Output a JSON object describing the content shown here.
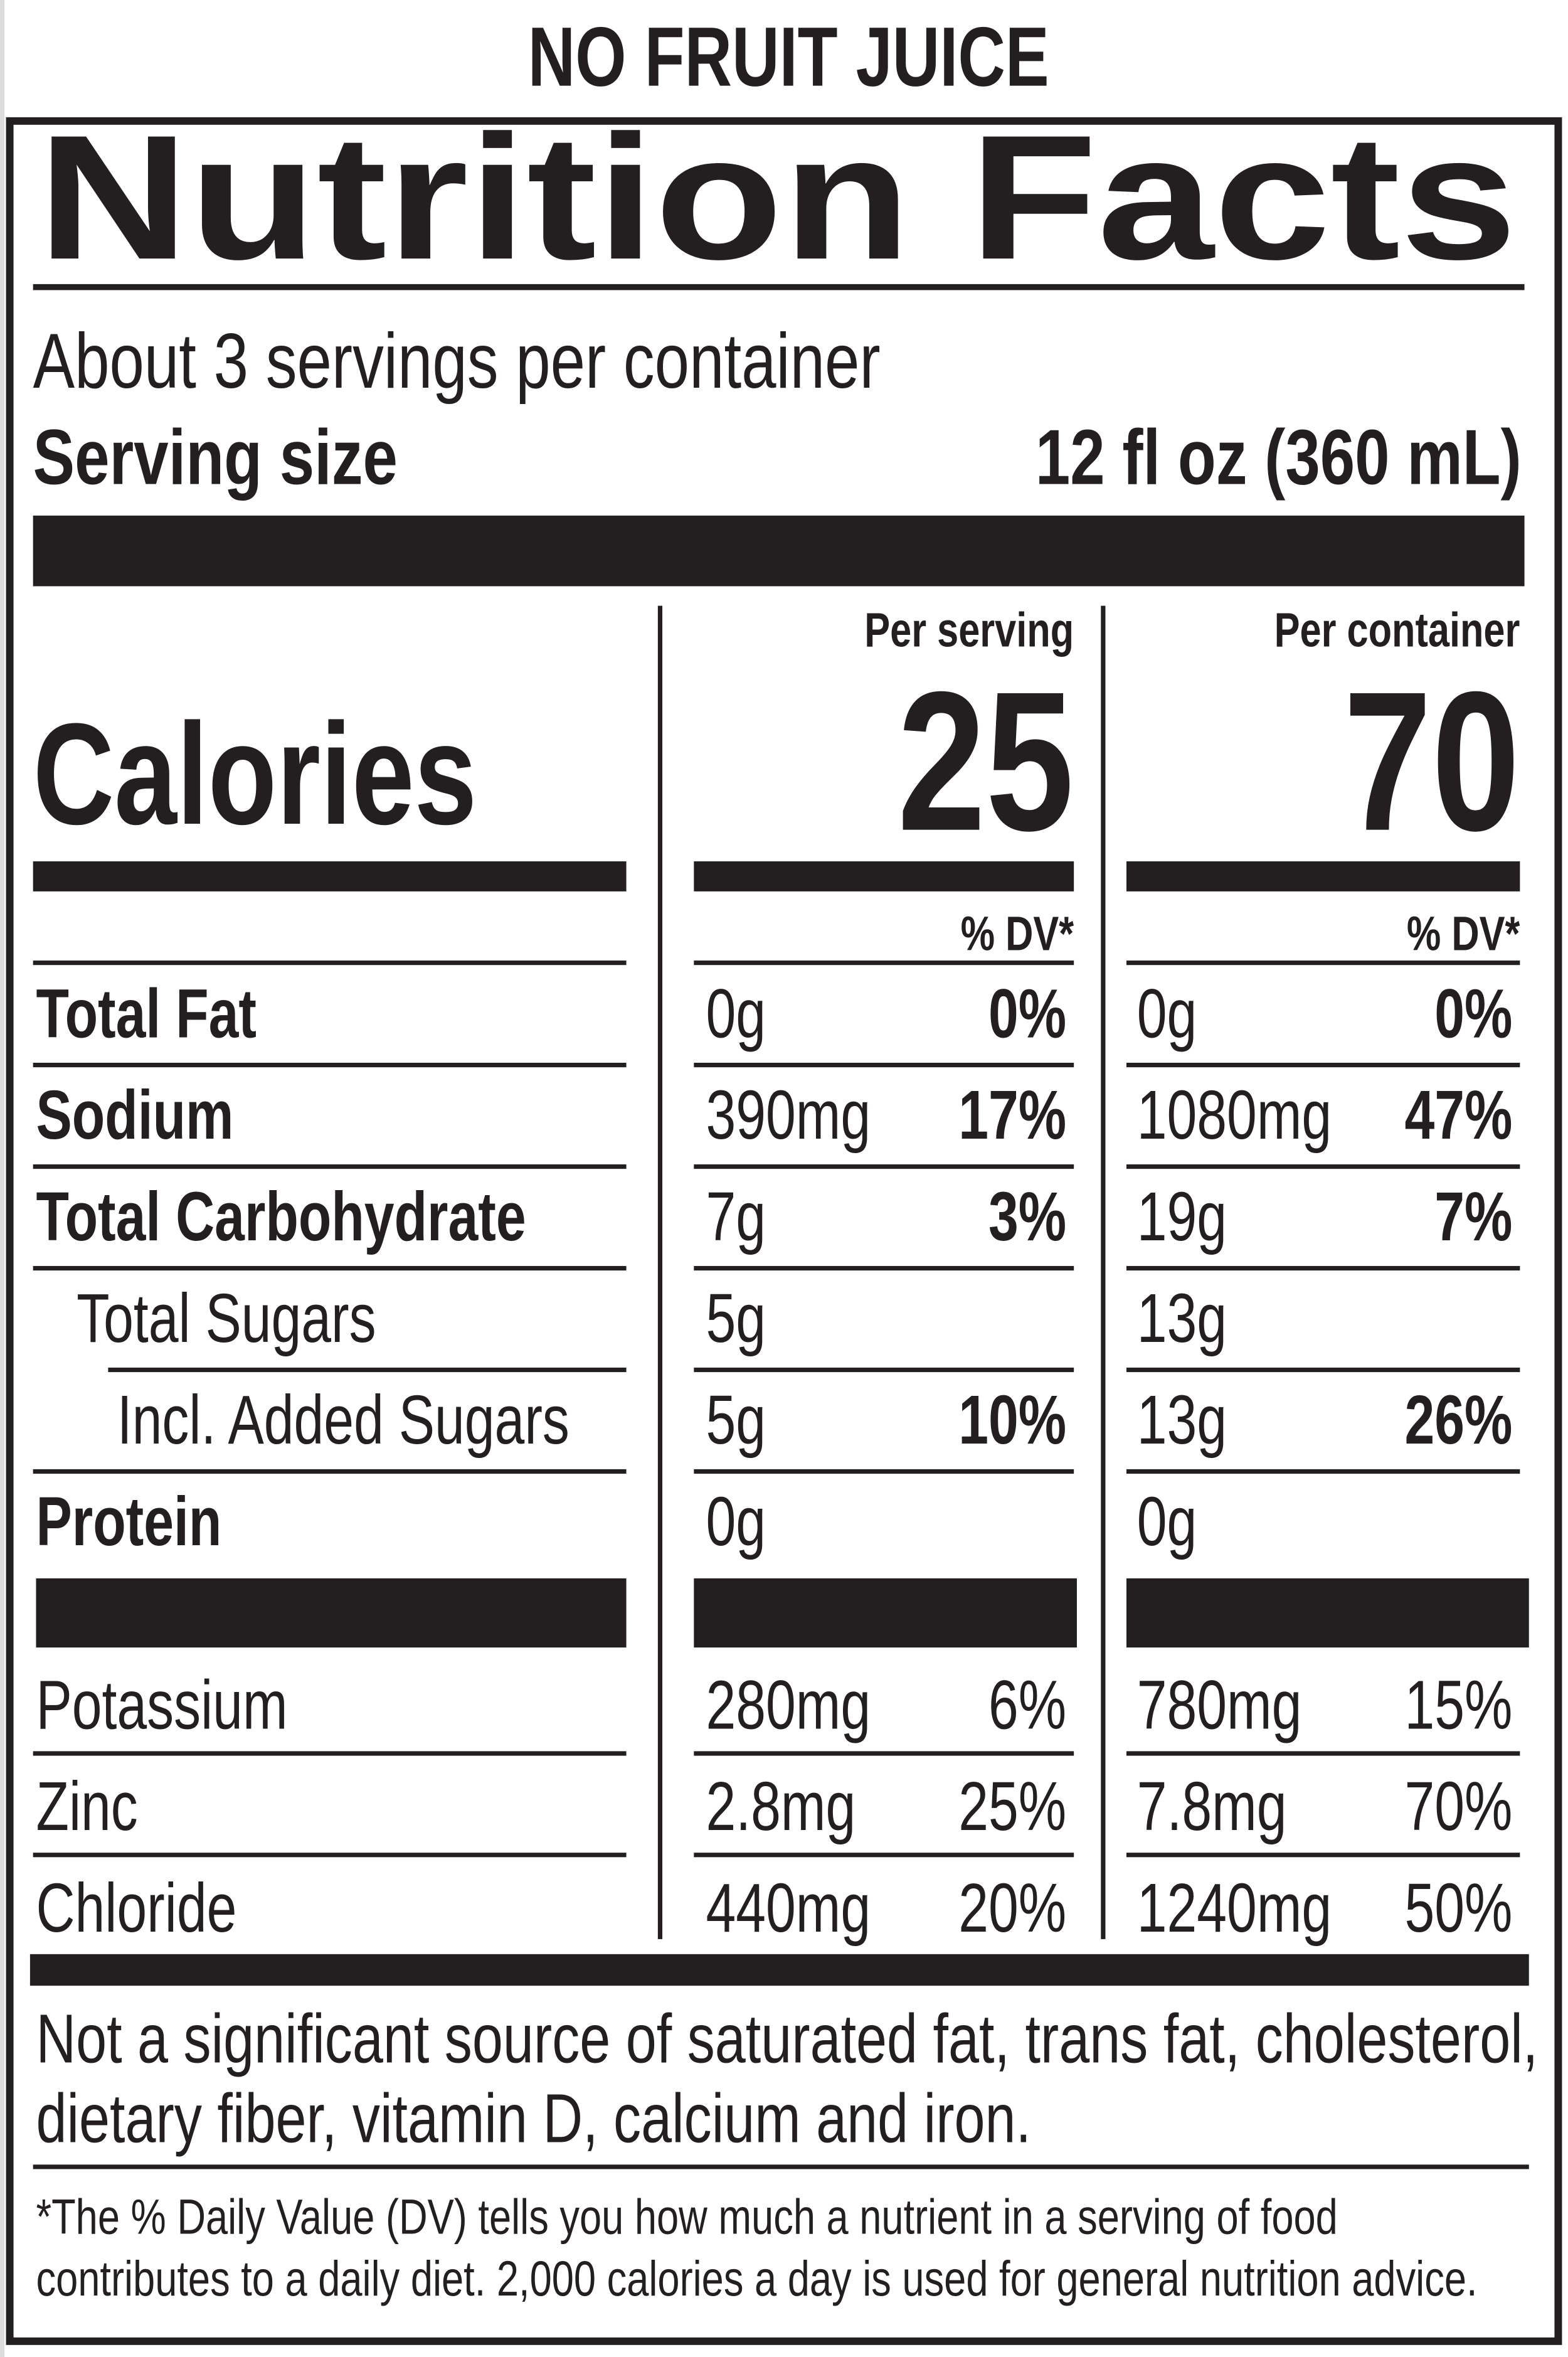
{
  "header": "NO FRUIT JUICE",
  "title": "Nutrition Facts",
  "servings": "About 3 servings per container",
  "serving_size_label": "Serving size",
  "serving_size": "12 fl oz (360 mL)",
  "columns": [
    "Per serving",
    "Per container"
  ],
  "calories_label": "Calories",
  "calories": [
    25,
    70
  ],
  "dv_header": "% DV*",
  "nutrients": [
    {
      "name": "Total Fat",
      "bold": true,
      "indent": 0,
      "values": [
        {
          "amount": "0g",
          "dv": "0%"
        },
        {
          "amount": "0g",
          "dv": "0%"
        }
      ]
    },
    {
      "name": "Sodium",
      "bold": true,
      "indent": 0,
      "values": [
        {
          "amount": "390mg",
          "dv": "17%"
        },
        {
          "amount": "1080mg",
          "dv": "47%"
        }
      ]
    },
    {
      "name": "Total Carbohydrate",
      "bold": true,
      "indent": 0,
      "values": [
        {
          "amount": "7g",
          "dv": "3%"
        },
        {
          "amount": "19g",
          "dv": "7%"
        }
      ]
    },
    {
      "name": "Total Sugars",
      "bold": false,
      "indent": 1,
      "values": [
        {
          "amount": "5g"
        },
        {
          "amount": "13g"
        }
      ]
    },
    {
      "name": "Incl. Added Sugars",
      "bold": false,
      "indent": 2,
      "values": [
        {
          "amount": "5g",
          "dv": "10%"
        },
        {
          "amount": "13g",
          "dv": "26%"
        }
      ]
    },
    {
      "name": "Protein",
      "bold": true,
      "indent": 0,
      "values": [
        {
          "amount": "0g"
        },
        {
          "amount": "0g"
        }
      ]
    }
  ],
  "minerals": [
    {
      "name": "Potassium",
      "values": [
        {
          "amount": "280mg",
          "dv": "6%"
        },
        {
          "amount": "780mg",
          "dv": "15%"
        }
      ]
    },
    {
      "name": "Zinc",
      "values": [
        {
          "amount": "2.8mg",
          "dv": "25%"
        },
        {
          "amount": "7.8mg",
          "dv": "70%"
        }
      ]
    },
    {
      "name": "Chloride",
      "values": [
        {
          "amount": "440mg",
          "dv": "20%"
        },
        {
          "amount": "1240mg",
          "dv": "50%"
        }
      ]
    }
  ],
  "not_significant": [
    "Not a significant source of saturated fat, trans fat, cholesterol,",
    "dietary fiber, vitamin D, calcium and iron."
  ],
  "footnote": [
    "*The % Daily Value (DV) tells you how much a nutrient in a serving of food",
    "contributes to a daily diet. 2,000 calories a day is used for general nutrition advice."
  ]
}
